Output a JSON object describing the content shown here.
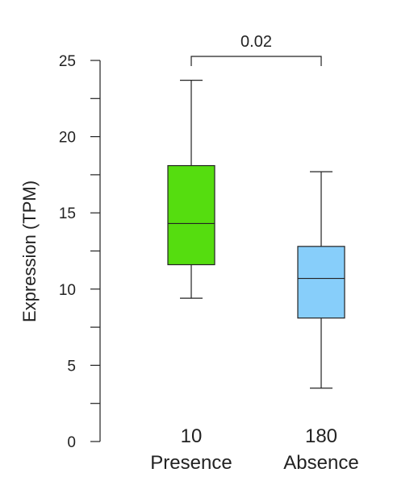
{
  "chart_data": {
    "type": "box",
    "ylabel": "Expression (TPM)",
    "xlabel": "",
    "ylim": [
      0,
      25
    ],
    "y_ticks": [
      0,
      5,
      10,
      15,
      20,
      25
    ],
    "y_minor_ticks": [
      2.5,
      7.5,
      12.5,
      17.5,
      22.5
    ],
    "grid": false,
    "groups": [
      {
        "count": "10",
        "name": "Presence",
        "color": "#55dd0f",
        "whisker_low": 9.4,
        "q1": 11.6,
        "median": 14.3,
        "q3": 18.1,
        "whisker_high": 23.7
      },
      {
        "count": "180",
        "name": "Absence",
        "color": "#87cefa",
        "whisker_low": 3.5,
        "q1": 8.1,
        "median": 10.7,
        "q3": 12.8,
        "whisker_high": 17.7
      }
    ],
    "annotations": [
      {
        "type": "significance-bracket",
        "from": "Presence",
        "to": "Absence",
        "label": "0.02"
      }
    ]
  }
}
